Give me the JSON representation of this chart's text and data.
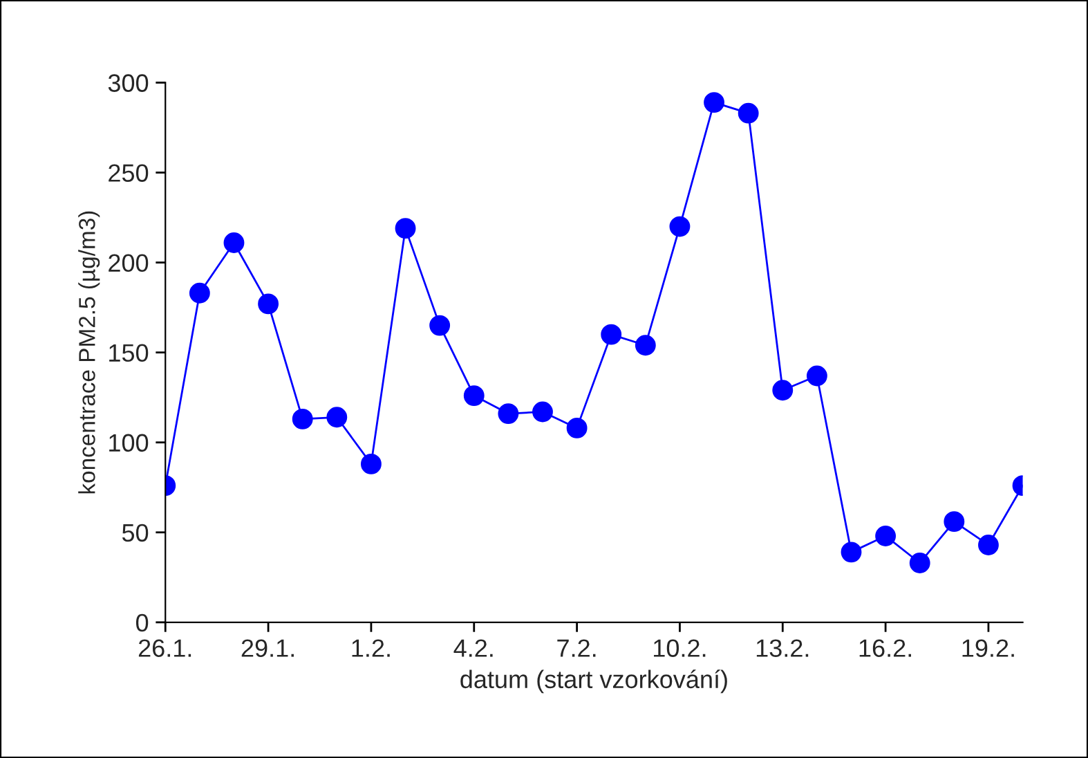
{
  "chart_data": {
    "type": "line",
    "xlabel": "datum (start vzorkování)",
    "ylabel": "koncentrace PM2.5 (µg/m3)",
    "categories": [
      "26.1.",
      null,
      null,
      "29.1.",
      null,
      null,
      "1.2.",
      null,
      null,
      "4.2.",
      null,
      null,
      "7.2.",
      null,
      null,
      "10.2.",
      null,
      null,
      "13.2.",
      null,
      null,
      "16.2.",
      null,
      null,
      "19.2.",
      null
    ],
    "series": [
      {
        "color": "#0000ff",
        "values": [
          76,
          183,
          211,
          177,
          113,
          114,
          88,
          219,
          165,
          126,
          116,
          117,
          108,
          160,
          154,
          220,
          289,
          283,
          129,
          137,
          39,
          48,
          33,
          56,
          43,
          76
        ]
      }
    ],
    "ylim": [
      0,
      300
    ],
    "yticks": [
      0,
      50,
      100,
      150,
      200,
      250,
      300
    ],
    "grid": false,
    "legend": false,
    "marker": "circle",
    "line_style": "solid"
  }
}
